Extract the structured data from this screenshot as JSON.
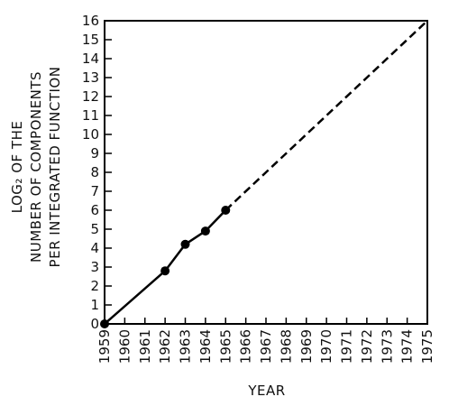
{
  "chart_data": {
    "type": "line",
    "title": "",
    "xlabel": "YEAR",
    "ylabel_lines": [
      "LOG₂ OF THE",
      "NUMBER OF COMPONENTS",
      "PER INTEGRATED FUNCTION"
    ],
    "x_ticks": [
      "1959",
      "1960",
      "1961",
      "1962",
      "1963",
      "1964",
      "1965",
      "1966",
      "1967",
      "1968",
      "1969",
      "1970",
      "1971",
      "1972",
      "1973",
      "1974",
      "1975"
    ],
    "y_ticks": [
      "0",
      "1",
      "2",
      "3",
      "4",
      "5",
      "6",
      "7",
      "8",
      "9",
      "10",
      "11",
      "12",
      "13",
      "14",
      "15",
      "16"
    ],
    "xlim": [
      1959,
      1975
    ],
    "ylim": [
      0,
      16
    ],
    "grid": false,
    "series": [
      {
        "style": "solid",
        "markers": true,
        "points": [
          {
            "x": 1959,
            "y": 0
          },
          {
            "x": 1962,
            "y": 2.8
          },
          {
            "x": 1963,
            "y": 4.2
          },
          {
            "x": 1964,
            "y": 4.9
          },
          {
            "x": 1965,
            "y": 6
          }
        ]
      },
      {
        "style": "dashed",
        "markers": false,
        "points": [
          {
            "x": 1965,
            "y": 6
          },
          {
            "x": 1975,
            "y": 16
          }
        ]
      }
    ]
  }
}
